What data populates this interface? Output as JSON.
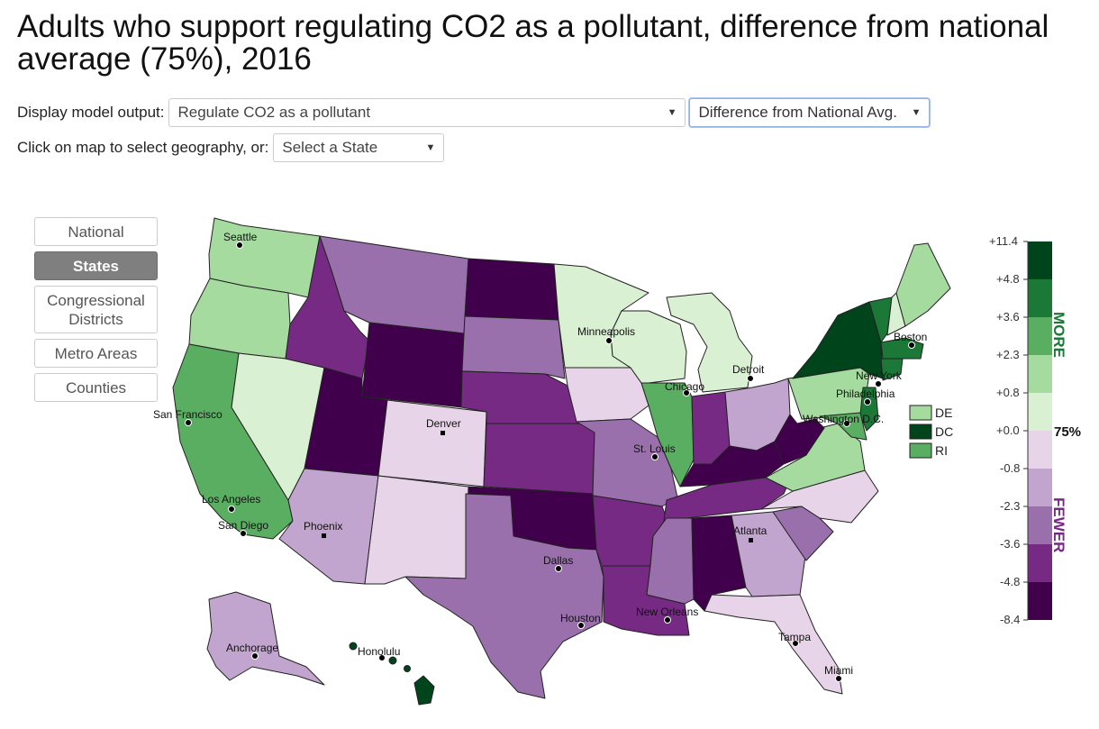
{
  "title": "Adults who support regulating CO2 as a pollutant, difference from national average (75%), 2016",
  "controls": {
    "display_label": "Display model output:",
    "model_output_value": "Regulate CO2 as a pollutant",
    "comparison_value": "Difference from National Avg.",
    "select_geo_label": "Click on map to select geography, or:",
    "state_select_value": "Select a State"
  },
  "geography_buttons": [
    {
      "label": "National",
      "active": false
    },
    {
      "label": "States",
      "active": true
    },
    {
      "label": "Congressional Districts",
      "active": false
    },
    {
      "label": "Metro Areas",
      "active": false
    },
    {
      "label": "Counties",
      "active": false
    }
  ],
  "legend": {
    "ticks": [
      "+11.4",
      "+4.8",
      "+3.6",
      "+2.3",
      "+0.8",
      "+0.0",
      "-0.8",
      "-2.3",
      "-3.6",
      "-4.8",
      "-8.4"
    ],
    "national_marker": "75%",
    "more_label": "MORE",
    "fewer_label": "FEWER",
    "bin_colors": [
      "#00441b",
      "#1b7837",
      "#5aae61",
      "#a6dba0",
      "#d9f0d3",
      "#e7d4e8",
      "#c2a5cf",
      "#9970ab",
      "#762a83",
      "#40004b"
    ]
  },
  "small_states": [
    {
      "label": "DE",
      "color": "#a6dba0"
    },
    {
      "label": "DC",
      "color": "#00441b"
    },
    {
      "label": "RI",
      "color": "#5aae61"
    }
  ],
  "cities": [
    "Seattle",
    "Minneapolis",
    "Boston",
    "Detroit",
    "New York",
    "Chicago",
    "Philadelphia",
    "San Francisco",
    "Washington D.C.",
    "Denver",
    "St. Louis",
    "Los Angeles",
    "San Diego",
    "Phoenix",
    "Atlanta",
    "Dallas",
    "New Orleans",
    "Houston",
    "Anchorage",
    "Honolulu",
    "Tampa",
    "Miami"
  ],
  "state_colors": {
    "WA": "#a6dba0",
    "OR": "#a6dba0",
    "CA": "#5aae61",
    "NV": "#d9f0d3",
    "ID": "#762a83",
    "MT": "#9970ab",
    "WY": "#40004b",
    "UT": "#40004b",
    "AZ": "#c2a5cf",
    "CO": "#e7d4e8",
    "NM": "#e7d4e8",
    "ND": "#40004b",
    "SD": "#9970ab",
    "NE": "#762a83",
    "KS": "#762a83",
    "OK": "#40004b",
    "TX": "#9970ab",
    "MN": "#d9f0d3",
    "IA": "#e7d4e8",
    "MO": "#9970ab",
    "AR": "#762a83",
    "LA": "#762a83",
    "WI": "#d9f0d3",
    "IL": "#5aae61",
    "MI": "#d9f0d3",
    "IN": "#762a83",
    "OH": "#c2a5cf",
    "KY": "#40004b",
    "TN": "#762a83",
    "MS": "#9970ab",
    "AL": "#40004b",
    "GA": "#c2a5cf",
    "FL": "#e7d4e8",
    "SC": "#9970ab",
    "NC": "#e7d4e8",
    "VA": "#a6dba0",
    "WV": "#40004b",
    "PA": "#a6dba0",
    "NY": "#00441b",
    "VT": "#1b7837",
    "NH": "#d9f0d3",
    "ME": "#a6dba0",
    "MA": "#1b7837",
    "CT": "#1b7837",
    "NJ": "#1b7837",
    "MD": "#5aae61",
    "AK": "#c2a5cf",
    "HI": "#00441b"
  }
}
